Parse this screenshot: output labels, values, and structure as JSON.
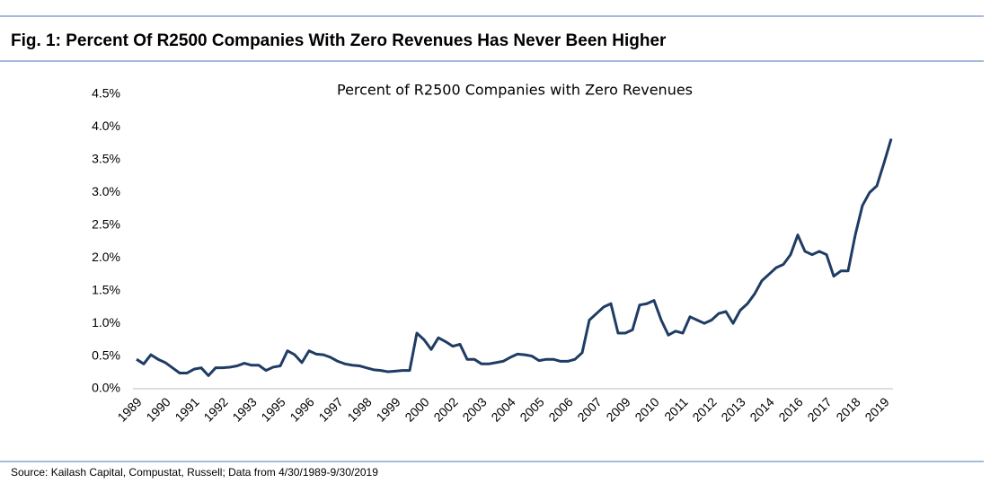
{
  "figure_title": "Fig. 1: Percent Of R2500 Companies With Zero Revenues Has Never Been Higher",
  "source": "Source: Kailash Capital, Compustat, Russell; Data from 4/30/1989-9/30/2019",
  "chart_data": {
    "type": "line",
    "title": "Percent of R2500 Companies with Zero Revenues",
    "categories": [
      "1989",
      null,
      null,
      null,
      "1990",
      null,
      null,
      null,
      "1991",
      null,
      null,
      null,
      "1992",
      null,
      null,
      null,
      "1993",
      null,
      null,
      null,
      "1995",
      null,
      null,
      null,
      "1996",
      null,
      null,
      null,
      "1997",
      null,
      null,
      null,
      "1998",
      null,
      null,
      null,
      "1999",
      null,
      null,
      null,
      "2000",
      null,
      null,
      null,
      "2002",
      null,
      null,
      null,
      "2003",
      null,
      null,
      null,
      "2004",
      null,
      null,
      null,
      "2005",
      null,
      null,
      null,
      "2006",
      null,
      null,
      null,
      "2007",
      null,
      null,
      null,
      "2009",
      null,
      null,
      null,
      "2010",
      null,
      null,
      null,
      "2011",
      null,
      null,
      null,
      "2012",
      null,
      null,
      null,
      "2013",
      null,
      null,
      null,
      "2014",
      null,
      null,
      null,
      "2016",
      null,
      null,
      null,
      "2017",
      null,
      null,
      null,
      "2018",
      null,
      null,
      null,
      "2019",
      null
    ],
    "series": [
      {
        "color": "#1f3c64",
        "values": [
          0.45,
          0.38,
          0.52,
          0.45,
          0.4,
          0.32,
          0.24,
          0.24,
          0.3,
          0.32,
          0.2,
          0.32,
          0.32,
          0.33,
          0.35,
          0.39,
          0.36,
          0.36,
          0.28,
          0.33,
          0.35,
          0.58,
          0.52,
          0.4,
          0.58,
          0.53,
          0.52,
          0.48,
          0.42,
          0.38,
          0.36,
          0.35,
          0.32,
          0.29,
          0.28,
          0.26,
          0.27,
          0.28,
          0.28,
          0.85,
          0.75,
          0.6,
          0.78,
          0.72,
          0.65,
          0.68,
          0.45,
          0.45,
          0.38,
          0.38,
          0.4,
          0.42,
          0.48,
          0.53,
          0.52,
          0.5,
          0.43,
          0.45,
          0.45,
          0.42,
          0.42,
          0.45,
          0.55,
          1.05,
          1.15,
          1.25,
          1.3,
          0.85,
          0.85,
          0.9,
          1.28,
          1.3,
          1.35,
          1.05,
          0.82,
          0.88,
          0.85,
          1.1,
          1.05,
          1.0,
          1.05,
          1.15,
          1.18,
          1.0,
          1.2,
          1.3,
          1.45,
          1.65,
          1.75,
          1.85,
          1.9,
          2.05,
          2.35,
          2.1,
          2.05,
          2.1,
          2.05,
          1.72,
          1.8,
          1.8,
          2.35,
          2.8,
          3.0,
          3.1,
          3.45,
          3.82
        ]
      }
    ],
    "ylim": [
      0,
      4.5
    ],
    "yticks": [
      {
        "value": 0,
        "label": "0.0%"
      },
      {
        "value": 0.5,
        "label": "0.5%"
      },
      {
        "value": 1,
        "label": "1.0%"
      },
      {
        "value": 1.5,
        "label": "1.5%"
      },
      {
        "value": 2,
        "label": "2.0%"
      },
      {
        "value": 2.5,
        "label": "2.5%"
      },
      {
        "value": 3,
        "label": "3.0%"
      },
      {
        "value": 3.5,
        "label": "3.5%"
      },
      {
        "value": 4,
        "label": "4.0%"
      },
      {
        "value": 4.5,
        "label": "4.5%"
      }
    ],
    "grid": false
  }
}
